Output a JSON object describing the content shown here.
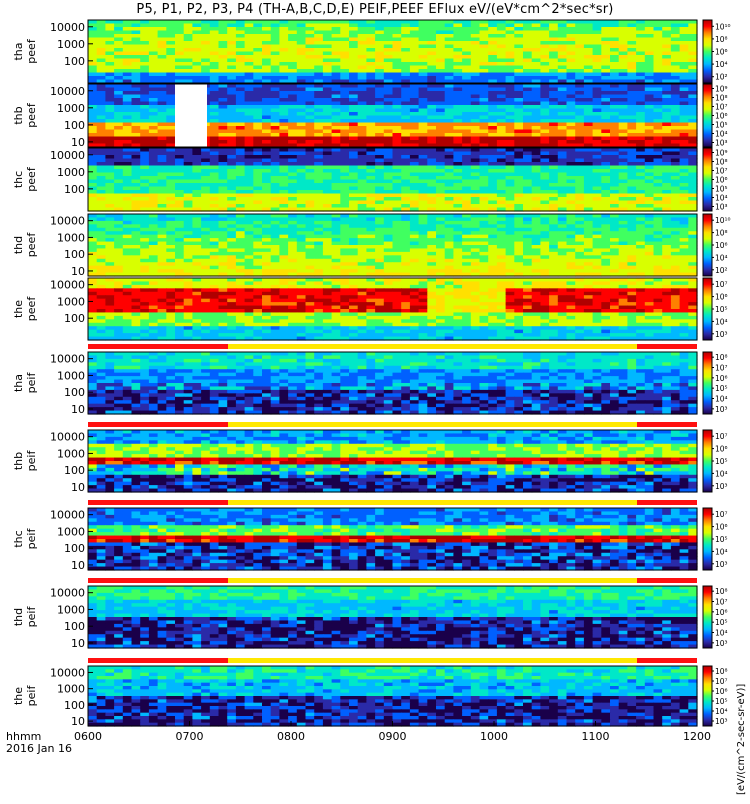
{
  "chart_data": {
    "type": "heatmap",
    "title": "P5, P1, P2, P3, P4 (TH-A,B,C,D,E) PEIF,PEEF EFlux eV/(eV*cm^2*sec*sr)",
    "x_axis": {
      "ticks": [
        "0600",
        "0700",
        "0800",
        "0900",
        "1000",
        "1100",
        "1200"
      ],
      "label_line1": "hhmm",
      "label_line2": "2016 Jan 16",
      "range": [
        "0600",
        "1200"
      ]
    },
    "colorbar_label": "[eV/(cm^2-sec-sr-eV)]",
    "panels": [
      {
        "label": "tha peef",
        "yticks": [
          "10000",
          "1000",
          "100"
        ],
        "ylog": true,
        "ylim": [
          5,
          25000
        ],
        "colorbar_ticks": [
          "10^2",
          "10^4",
          "10^6",
          "10^8",
          "10^10"
        ]
      },
      {
        "label": "thb peef",
        "yticks": [
          "10000",
          "1000",
          "100",
          "10"
        ],
        "ylog": true,
        "ylim": [
          5,
          25000
        ],
        "colorbar_ticks": [
          "10^3",
          "10^4",
          "10^5",
          "10^6",
          "10^7",
          "10^8",
          "10^9"
        ]
      },
      {
        "label": "thc peef",
        "yticks": [
          "10000",
          "1000",
          "100"
        ],
        "ylog": true,
        "ylim": [
          5,
          25000
        ],
        "colorbar_ticks": [
          "10^3",
          "10^4",
          "10^5",
          "10^6",
          "10^7",
          "10^8",
          "10^9"
        ]
      },
      {
        "label": "thd peef",
        "yticks": [
          "10000",
          "1000",
          "100",
          "10"
        ],
        "ylog": true,
        "ylim": [
          5,
          25000
        ],
        "colorbar_ticks": [
          "10^2",
          "10^4",
          "10^6",
          "10^8",
          "10^10"
        ]
      },
      {
        "label": "the peef",
        "yticks": [
          "10000",
          "1000",
          "100"
        ],
        "ylog": true,
        "ylim": [
          5,
          25000
        ],
        "colorbar_ticks": [
          "10^3",
          "10^4",
          "10^5",
          "10^6",
          "10^7"
        ]
      },
      {
        "label": "tha peif",
        "yticks": [
          "10000",
          "1000",
          "100",
          "10"
        ],
        "ylog": true,
        "ylim": [
          5,
          25000
        ],
        "colorbar_ticks": [
          "10^3",
          "10^4",
          "10^5",
          "10^6",
          "10^7",
          "10^8"
        ]
      },
      {
        "label": "thb peif",
        "yticks": [
          "10000",
          "1000",
          "100",
          "10"
        ],
        "ylog": true,
        "ylim": [
          5,
          25000
        ],
        "colorbar_ticks": [
          "10^3",
          "10^4",
          "10^5",
          "10^6",
          "10^7"
        ]
      },
      {
        "label": "thc peif",
        "yticks": [
          "10000",
          "1000",
          "100",
          "10"
        ],
        "ylog": true,
        "ylim": [
          5,
          25000
        ],
        "colorbar_ticks": [
          "10^3",
          "10^4",
          "10^5",
          "10^6",
          "10^7"
        ]
      },
      {
        "label": "thd peif",
        "yticks": [
          "10000",
          "1000",
          "100",
          "10"
        ],
        "ylog": true,
        "ylim": [
          5,
          25000
        ],
        "colorbar_ticks": [
          "10^3",
          "10^4",
          "10^5",
          "10^6",
          "10^7",
          "10^8"
        ]
      },
      {
        "label": "the peif",
        "yticks": [
          "10000",
          "1000",
          "100",
          "10"
        ],
        "ylog": true,
        "ylim": [
          5,
          25000
        ],
        "colorbar_ticks": [
          "10^3",
          "10^4",
          "10^5",
          "10^6",
          "10^7",
          "10^8"
        ]
      }
    ],
    "grid": false,
    "colormap": [
      "#1a004a",
      "#2a2aa8",
      "#0060ff",
      "#00b8ff",
      "#00e8c8",
      "#40ff60",
      "#d8ff00",
      "#ffe000",
      "#ff8000",
      "#ff0000",
      "#b00000"
    ]
  }
}
